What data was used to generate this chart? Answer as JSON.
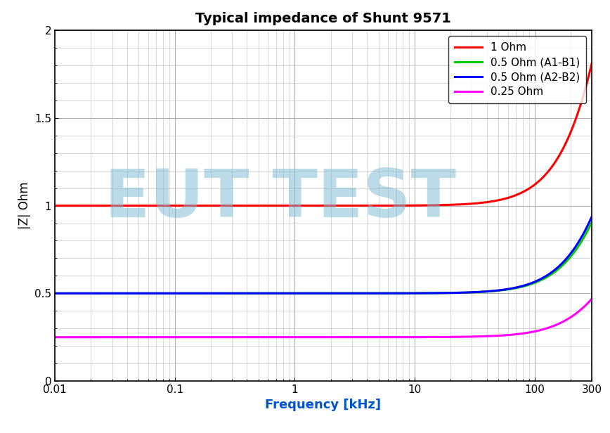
{
  "title": "Typical impedance of Shunt 9571",
  "xlabel": "Frequency [kHz]",
  "ylabel": "|Z| Ohm",
  "xlim": [
    0.01,
    300
  ],
  "ylim": [
    0,
    2
  ],
  "yticks": [
    0,
    0.5,
    1,
    1.5,
    2
  ],
  "background_color": "#ffffff",
  "watermark_text": "EUT TEST",
  "watermark_color": "#7ab8d4",
  "watermark_alpha": 0.5,
  "series": [
    {
      "label": "1 Ohm",
      "color": "red",
      "R": 1.0,
      "L": 8e-07,
      "linewidth": 2.2
    },
    {
      "label": "0.5 Ohm (A1-B1)",
      "color": "#00cc00",
      "R": 0.5,
      "L": 4e-07,
      "linewidth": 2.2
    },
    {
      "label": "0.5 Ohm (A2-B2)",
      "color": "blue",
      "R": 0.5,
      "L": 4.2e-07,
      "linewidth": 2.2
    },
    {
      "label": "0.25 Ohm",
      "color": "magenta",
      "R": 0.25,
      "L": 2.1e-07,
      "linewidth": 2.2
    }
  ]
}
